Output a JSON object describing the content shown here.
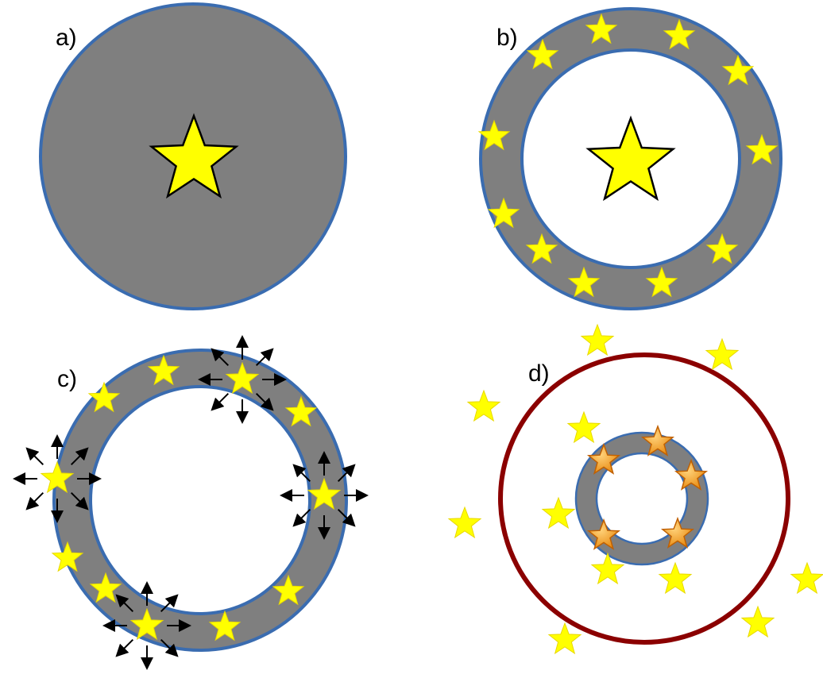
{
  "panels": {
    "a": {
      "label": "a)"
    },
    "b": {
      "label": "b)"
    },
    "c": {
      "label": "c)"
    },
    "d": {
      "label": "d)"
    }
  },
  "colors": {
    "cloud_fill": "#7f7f7f",
    "cloud_edge": "#3a6cb0",
    "star_fill": "#ffff00",
    "star_outline": "#000000",
    "minor_star_fill": "#ffff00",
    "minor_star_outline": "#e8d800",
    "orange_star_fill": "#f4a020",
    "orange_star_outline": "#c06000",
    "boundary_circle": "#8b0000",
    "arrow": "#000000"
  }
}
